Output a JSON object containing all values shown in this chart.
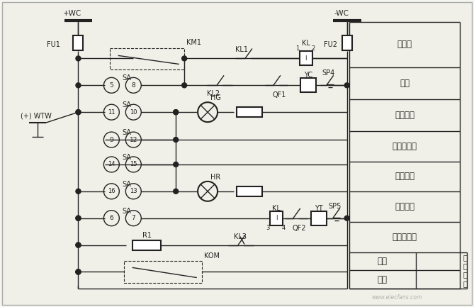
{
  "bg_color": "#f0f0f0",
  "line_color": "#333333",
  "fig_width": 6.69,
  "fig_height": 4.33,
  "dpi": 100,
  "watermark": "www.elecfans.com",
  "right_labels": [
    "熔断器",
    "防跳",
    "合闸回路",
    "合闸位置灯",
    "绿灯闪光",
    "红灯闪光",
    "跳闸位置灯"
  ],
  "bottom_labels_left": [
    "手动",
    "保护"
  ],
  "jump_label": "跳\n闸\n回\n路"
}
